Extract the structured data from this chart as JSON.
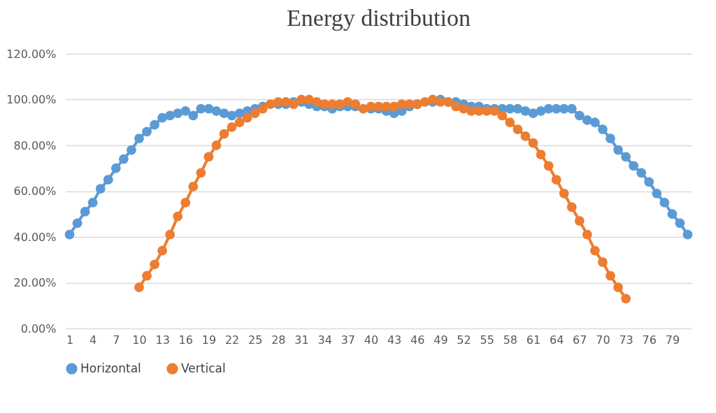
{
  "chart_data": {
    "type": "line",
    "title": "Energy distribution",
    "categories": [
      "1",
      null,
      null,
      "4",
      null,
      null,
      "7",
      null,
      null,
      "10",
      null,
      null,
      "13",
      null,
      null,
      "16",
      null,
      null,
      "19",
      null,
      null,
      "22",
      null,
      null,
      "25",
      null,
      null,
      "28",
      null,
      null,
      "31",
      null,
      null,
      "34",
      null,
      null,
      "37",
      null,
      null,
      "40",
      null,
      null,
      "43",
      null,
      null,
      "46",
      null,
      null,
      "49",
      null,
      null,
      "52",
      null,
      null,
      "55",
      null,
      null,
      "58",
      null,
      null,
      "61",
      null,
      null,
      "64",
      null,
      null,
      "67",
      null,
      null,
      "70",
      null,
      null,
      "73",
      null,
      null,
      "76",
      null,
      null,
      "79",
      null,
      null
    ],
    "series": [
      {
        "name": "Horizontal",
        "color": "#5b9bd5",
        "values": [
          41,
          46,
          51,
          55,
          61,
          65,
          70,
          74,
          78,
          83,
          86,
          89,
          92,
          93,
          94,
          95,
          93,
          96,
          96,
          95,
          94,
          93,
          94,
          95,
          96,
          97,
          null,
          98,
          98,
          99,
          99,
          98,
          97,
          97,
          96,
          97,
          97,
          97,
          null,
          96,
          96,
          95,
          94,
          95,
          97,
          98,
          null,
          99,
          100,
          99,
          99,
          98,
          97,
          97,
          96,
          96,
          96,
          96,
          96,
          95,
          94,
          95,
          96,
          96,
          96,
          96,
          93,
          91,
          90,
          87,
          83,
          78,
          75,
          71,
          68,
          64,
          59,
          55,
          50,
          46,
          41
        ]
      },
      {
        "name": "Vertical",
        "color": "#ed7d31",
        "values": [
          null,
          null,
          null,
          null,
          null,
          null,
          null,
          null,
          null,
          18,
          23,
          28,
          34,
          41,
          49,
          55,
          62,
          68,
          75,
          80,
          85,
          88,
          90,
          92,
          94,
          96,
          98,
          99,
          99,
          98,
          100,
          100,
          99,
          98,
          98,
          98,
          99,
          98,
          96,
          97,
          97,
          97,
          97,
          98,
          98,
          98,
          99,
          100,
          99,
          99,
          97,
          96,
          95,
          95,
          95,
          95,
          93,
          90,
          87,
          84,
          81,
          76,
          71,
          65,
          59,
          53,
          47,
          41,
          34,
          29,
          23,
          18,
          13,
          null,
          null,
          null,
          null,
          null,
          null,
          null,
          null
        ]
      }
    ],
    "ylim": [
      0,
      120
    ],
    "yticks": [
      {
        "value": 0,
        "label": "0.00%"
      },
      {
        "value": 20,
        "label": "20.00%"
      },
      {
        "value": 40,
        "label": "40.00%"
      },
      {
        "value": 60,
        "label": "60.00%"
      },
      {
        "value": 80,
        "label": "80.00%"
      },
      {
        "value": 100,
        "label": "100.00%"
      },
      {
        "value": 120,
        "label": "120.00%"
      }
    ],
    "grid": "y",
    "legend": "bottom",
    "marker": "circle",
    "line_style": "solid"
  }
}
